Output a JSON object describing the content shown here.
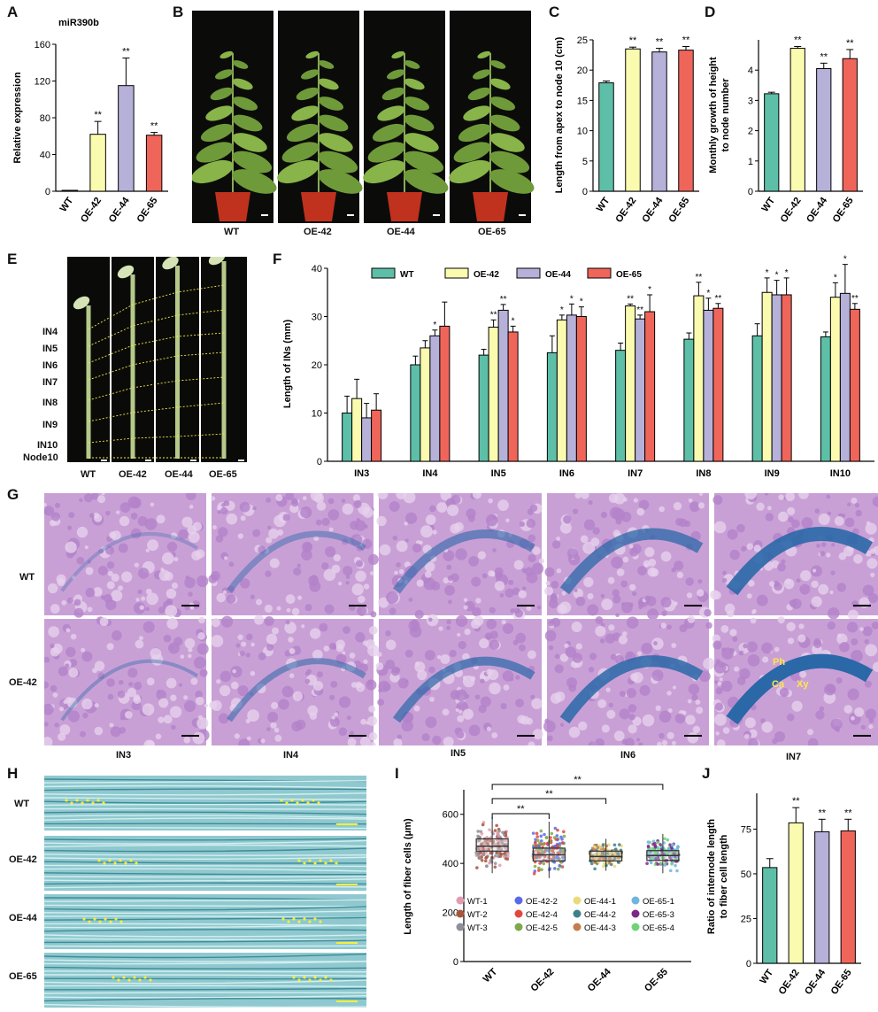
{
  "colors": {
    "WT": "#5dbfa8",
    "OE-42": "#fbfbb0",
    "OE-44": "#b6b1d9",
    "OE-65": "#f0655a"
  },
  "panelA": {
    "letter": "A",
    "title": "miR390b",
    "ylabel": "Relative expression",
    "categories": [
      "WT",
      "OE-42",
      "OE-44",
      "OE-65"
    ],
    "values": [
      1,
      62,
      115,
      61
    ],
    "errors": [
      0,
      14,
      30,
      3
    ],
    "sig": [
      "",
      "**",
      "**",
      "**"
    ],
    "ylim": [
      0,
      160
    ],
    "yticks": [
      "0",
      "40",
      "80",
      "120",
      "160"
    ]
  },
  "panelB": {
    "letter": "B",
    "labels": [
      "WT",
      "OE-42",
      "OE-44",
      "OE-65"
    ]
  },
  "panelC": {
    "letter": "C",
    "ylabel": "Length from apex to node 10 (cm)",
    "categories": [
      "WT",
      "OE-42",
      "OE-44",
      "OE-65"
    ],
    "values": [
      17.9,
      23.5,
      23.0,
      23.3
    ],
    "errors": [
      0.3,
      0.3,
      0.6,
      0.6
    ],
    "sig": [
      "",
      "**",
      "**",
      "**"
    ],
    "ylim": [
      0,
      25
    ],
    "yticks": [
      "0",
      "5",
      "10",
      "15",
      "20",
      "25"
    ]
  },
  "panelD": {
    "letter": "D",
    "ylabel": "Monthly growth of height to node number",
    "ylabel_line1": "Monthly growth of height",
    "ylabel_line2": "to node number",
    "categories": [
      "WT",
      "OE-42",
      "OE-44",
      "OE-65"
    ],
    "values": [
      3.22,
      4.72,
      4.05,
      4.38
    ],
    "errors": [
      0.05,
      0.06,
      0.18,
      0.3
    ],
    "sig": [
      "",
      "**",
      "**",
      "**"
    ],
    "ylim": [
      0,
      5
    ],
    "yticks": [
      "0",
      "1",
      "2",
      "3",
      "4"
    ]
  },
  "panelE": {
    "letter": "E",
    "internodes": [
      "IN4",
      "IN5",
      "IN6",
      "IN7",
      "IN8",
      "IN9",
      "IN10",
      "Node10"
    ],
    "labels": [
      "WT",
      "OE-42",
      "OE-44",
      "OE-65"
    ]
  },
  "panelF": {
    "letter": "F",
    "ylabel": "Length of INs (mm)",
    "categories": [
      "IN3",
      "IN4",
      "IN5",
      "IN6",
      "IN7",
      "IN8",
      "IN9",
      "IN10"
    ],
    "series": [
      {
        "name": "WT",
        "values": [
          10,
          20,
          22,
          22.5,
          23,
          25.3,
          26,
          25.8
        ],
        "errors": [
          3.5,
          1.8,
          1.2,
          3.5,
          1.5,
          1.3,
          2.5,
          1
        ]
      },
      {
        "name": "OE-42",
        "values": [
          13,
          23.5,
          27.8,
          29.3,
          32.2,
          34.3,
          35,
          34
        ],
        "errors": [
          4,
          1.5,
          1.5,
          1,
          0.4,
          2.8,
          3,
          3
        ]
      },
      {
        "name": "OE-44",
        "values": [
          9,
          26,
          31.3,
          30.3,
          29.5,
          31.3,
          34.5,
          34.8
        ],
        "errors": [
          3,
          1.2,
          1.2,
          2.3,
          0.8,
          2.5,
          3,
          6
        ]
      },
      {
        "name": "OE-65",
        "values": [
          10.6,
          28,
          26.8,
          30,
          31,
          31.7,
          34.5,
          31.5
        ],
        "errors": [
          3.4,
          5,
          1.2,
          2,
          3.5,
          1,
          3.5,
          1.2
        ]
      }
    ],
    "sig": [
      [
        "",
        "",
        "",
        ""
      ],
      [
        "",
        "",
        "*",
        ""
      ],
      [
        "",
        "**",
        "**",
        "*"
      ],
      [
        "",
        "*",
        "*",
        "*"
      ],
      [
        "",
        "**",
        "**",
        "*"
      ],
      [
        "",
        "**",
        "*",
        "**"
      ],
      [
        "",
        "*",
        "*",
        "*"
      ],
      [
        "",
        "*",
        "*",
        "**"
      ]
    ],
    "ylim": [
      0,
      40
    ],
    "yticks": [
      "0",
      "10",
      "20",
      "30",
      "40"
    ]
  },
  "panelG": {
    "letter": "G",
    "rows": [
      "WT",
      "OE-42"
    ],
    "columns": [
      "IN3",
      "IN4",
      "IN5",
      "IN6",
      "IN7"
    ],
    "annotations": [
      "Ph",
      "Ca",
      "Xy"
    ]
  },
  "panelH": {
    "letter": "H",
    "rows": [
      "WT",
      "OE-42",
      "OE-44",
      "OE-65"
    ]
  },
  "panelI": {
    "letter": "I",
    "ylabel": "Length of fiber cells (μm)",
    "categories": [
      "WT",
      "OE-42",
      "OE-44",
      "OE-65"
    ],
    "medians": [
      470,
      435,
      428,
      432
    ],
    "q1": [
      450,
      410,
      410,
      412
    ],
    "q3": [
      500,
      462,
      450,
      452
    ],
    "min": [
      360,
      340,
      370,
      360
    ],
    "max": [
      590,
      570,
      500,
      520
    ],
    "ylim": [
      0,
      700
    ],
    "yticks": [
      "0",
      "200",
      "400",
      "600"
    ],
    "sig": [
      "**",
      "**",
      "**"
    ],
    "legend": [
      "WT-1",
      "OE-42-2",
      "OE-44-1",
      "OE-65-1",
      "WT-2",
      "OE-42-4",
      "OE-44-2",
      "OE-65-3",
      "WT-3",
      "OE-42-5",
      "OE-44-3",
      "OE-65-4"
    ],
    "legend_colors": [
      "#e39bb0",
      "#5b6be8",
      "#ecd97a",
      "#6fb6dd",
      "#a8553a",
      "#e2483c",
      "#3f7f8c",
      "#7a2a86",
      "#8f8f99",
      "#7fa84b",
      "#c47d4b",
      "#6fd37a"
    ]
  },
  "panelJ": {
    "letter": "J",
    "ylabel": "Ratio of internode length to fiber cell length",
    "ylabel_line1": "Ratio of internode length",
    "ylabel_line2": "to fiber cell length",
    "categories": [
      "WT",
      "OE-42",
      "OE-44",
      "OE-65"
    ],
    "values": [
      53.5,
      78.5,
      73.5,
      74
    ],
    "errors": [
      5,
      8.5,
      7,
      6.5
    ],
    "sig": [
      "",
      "**",
      "**",
      "**"
    ],
    "ylim": [
      0,
      95
    ],
    "yticks": [
      "0",
      "25",
      "50",
      "75"
    ]
  }
}
